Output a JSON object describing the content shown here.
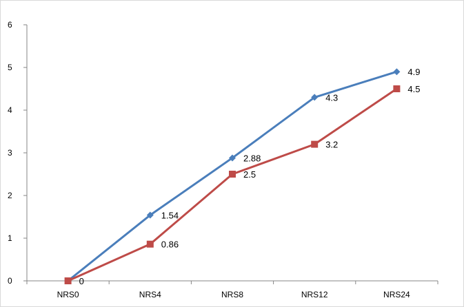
{
  "chart_data": {
    "type": "line",
    "title": "",
    "xlabel": "",
    "ylabel": "",
    "categories": [
      "NRS0",
      "NRS4",
      "NRS8",
      "NRS12",
      "NRS24"
    ],
    "ylim": [
      0,
      6
    ],
    "yticks": [
      0,
      1,
      2,
      3,
      4,
      5,
      6
    ],
    "grid": false,
    "legend": "none",
    "series": [
      {
        "values": [
          0,
          1.54,
          2.88,
          4.3,
          4.9
        ],
        "labels": [
          "",
          "1.54",
          "2.88",
          "4.3",
          "4.9"
        ],
        "color": "#4a7ebb",
        "marker": "diamond"
      },
      {
        "values": [
          0,
          0.86,
          2.5,
          3.2,
          4.5
        ],
        "labels": [
          "0",
          "0.86",
          "2.5",
          "3.2",
          "4.5"
        ],
        "color": "#be4b48",
        "marker": "square"
      }
    ]
  }
}
